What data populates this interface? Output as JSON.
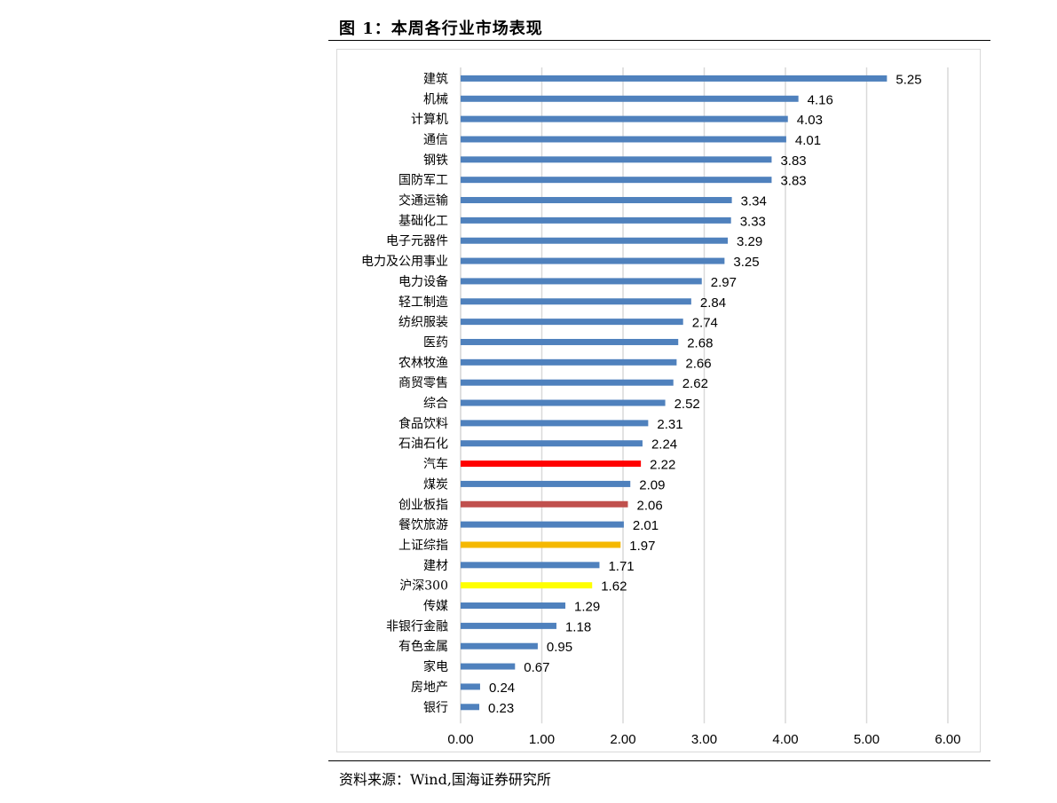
{
  "figure": {
    "title": "图 1：本周各行业市场表现",
    "source": "资料来源：Wind,国海证券研究所"
  },
  "colors": {
    "default": "#4f81bd",
    "汽车": "#ff0000",
    "创业板指": "#c0504d",
    "上证综指": "#f5b800",
    "沪深300": "#ffff00",
    "grid": "#d9d9d9"
  },
  "chart_data": {
    "type": "bar",
    "orientation": "horizontal",
    "categories": [
      "建筑",
      "机械",
      "计算机",
      "通信",
      "钢铁",
      "国防军工",
      "交通运输",
      "基础化工",
      "电子元器件",
      "电力及公用事业",
      "电力设备",
      "轻工制造",
      "纺织服装",
      "医药",
      "农林牧渔",
      "商贸零售",
      "综合",
      "食品饮料",
      "石油石化",
      "汽车",
      "煤炭",
      "创业板指",
      "餐饮旅游",
      "上证综指",
      "建材",
      "沪深300",
      "传媒",
      "非银行金融",
      "有色金属",
      "家电",
      "房地产",
      "银行"
    ],
    "values": [
      5.25,
      4.16,
      4.03,
      4.01,
      3.83,
      3.83,
      3.34,
      3.33,
      3.29,
      3.25,
      2.97,
      2.84,
      2.74,
      2.68,
      2.66,
      2.62,
      2.52,
      2.31,
      2.24,
      2.22,
      2.09,
      2.06,
      2.01,
      1.97,
      1.71,
      1.62,
      1.29,
      1.18,
      0.95,
      0.67,
      0.24,
      0.23
    ],
    "value_labels": [
      "5.25",
      "4.16",
      "4.03",
      "4.01",
      "3.83",
      "3.83",
      "3.34",
      "3.33",
      "3.29",
      "3.25",
      "2.97",
      "2.84",
      "2.74",
      "2.68",
      "2.66",
      "2.62",
      "2.52",
      "2.31",
      "2.24",
      "2.22",
      "2.09",
      "2.06",
      "2.01",
      "1.97",
      "1.71",
      "1.62",
      "1.29",
      "1.18",
      "0.95",
      "0.67",
      "0.24",
      "0.23"
    ],
    "xlim": [
      0,
      6
    ],
    "xticks": [
      "0.00",
      "1.00",
      "2.00",
      "3.00",
      "4.00",
      "5.00",
      "6.00"
    ],
    "grid": true,
    "legend": false
  }
}
